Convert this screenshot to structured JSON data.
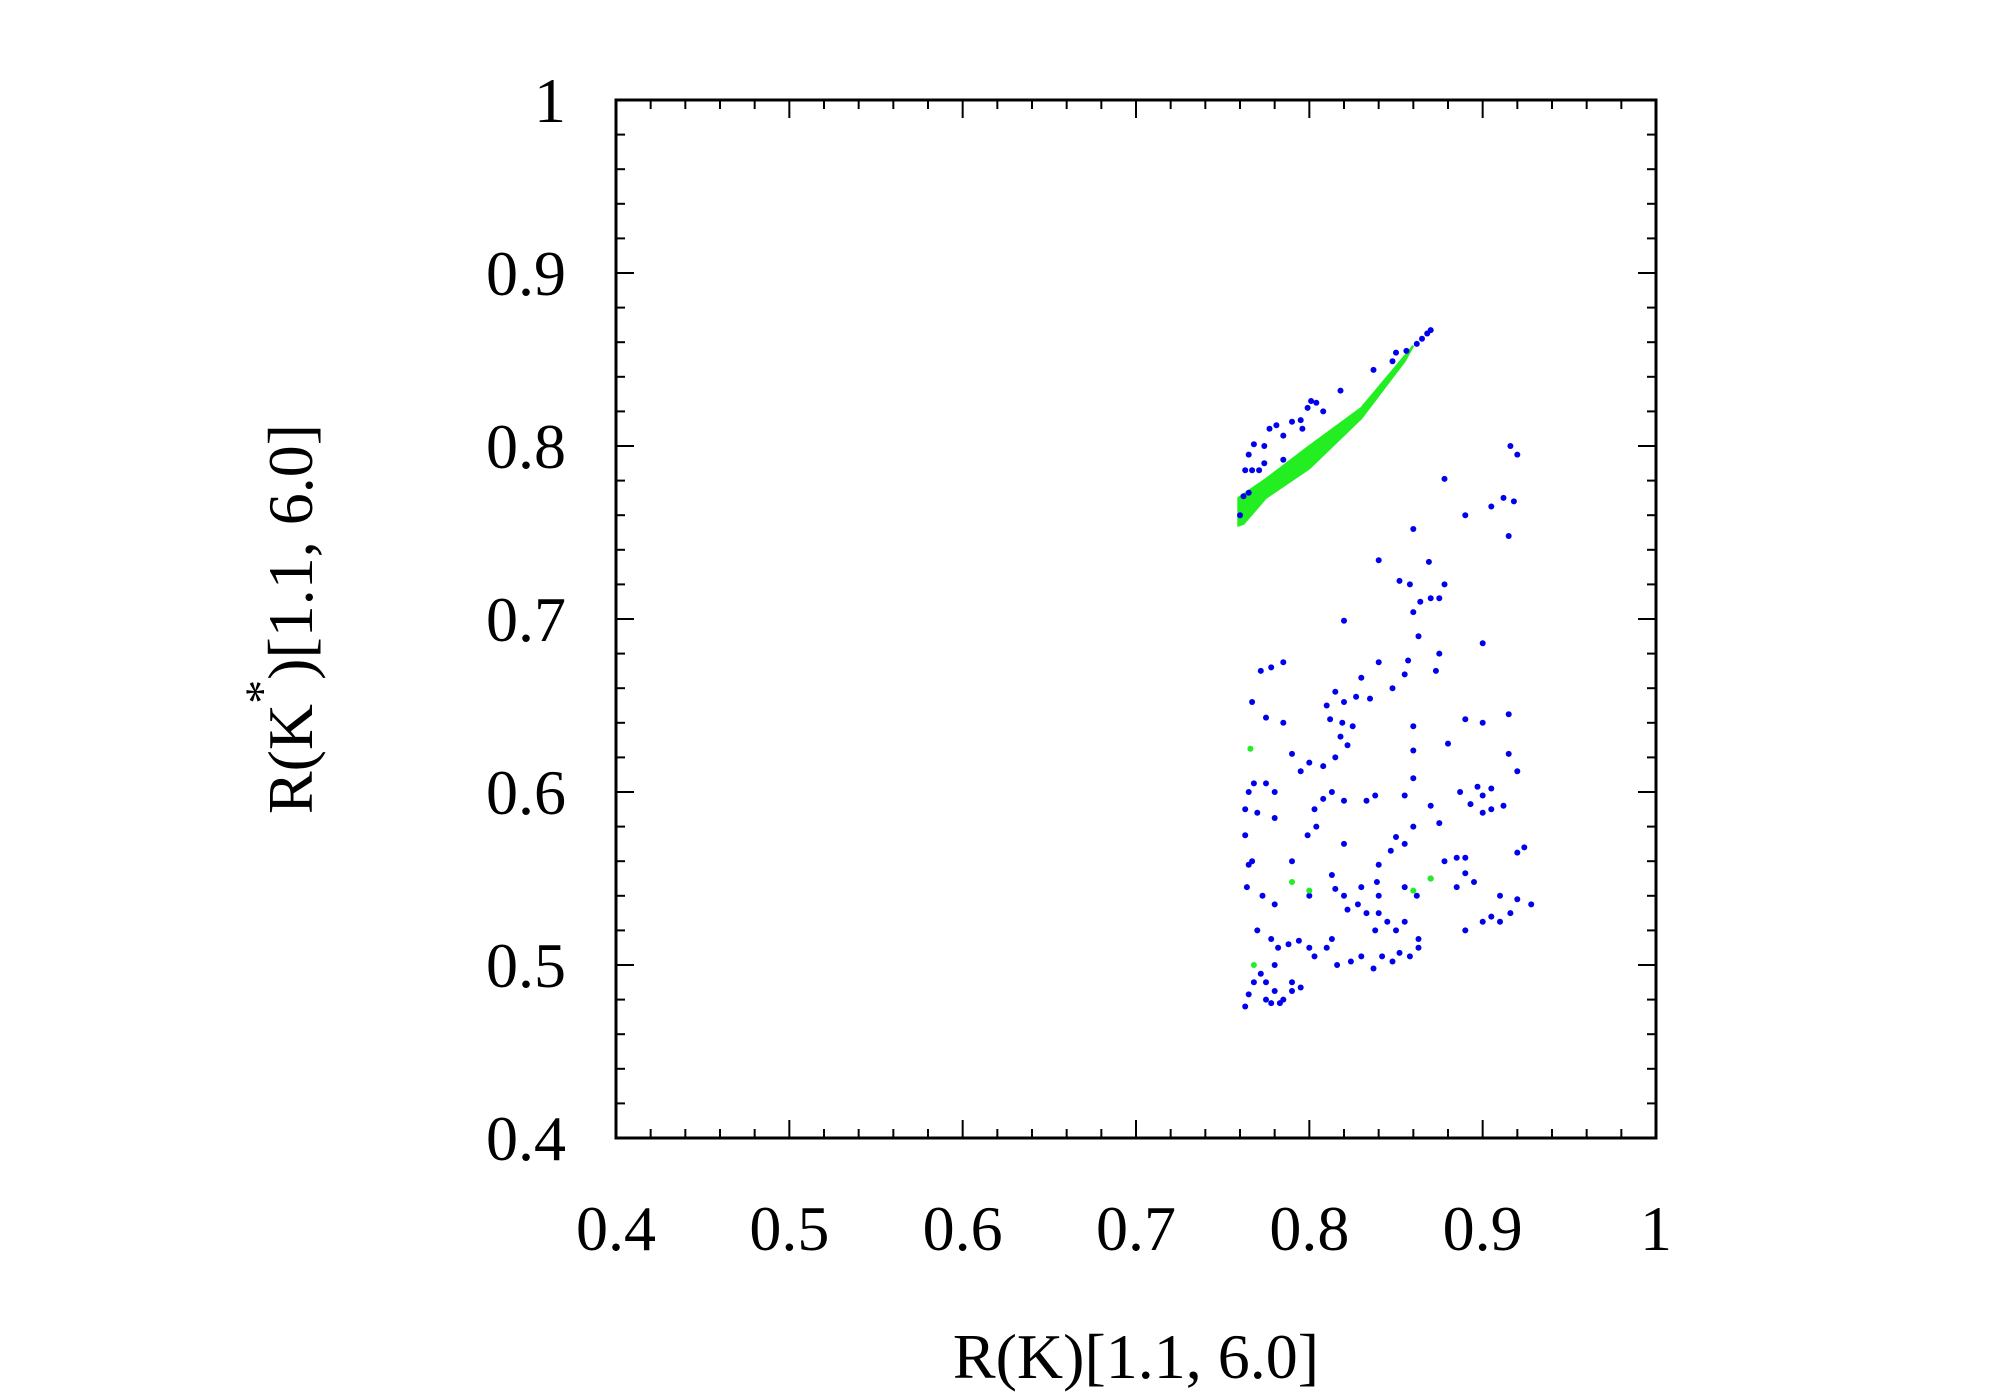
{
  "chart_data": {
    "type": "scatter",
    "xlabel": "R(K)[1.1, 6.0]",
    "ylabel_main": "R(K",
    "ylabel_sup": "*",
    "ylabel_rest": ")[1.1, 6.0]",
    "xlim": [
      0.4,
      1.0
    ],
    "ylim": [
      0.4,
      1.0
    ],
    "xticks": [
      0.4,
      0.5,
      0.6,
      0.7,
      0.8,
      0.9,
      1.0
    ],
    "yticks": [
      0.4,
      0.5,
      0.6,
      0.7,
      0.8,
      0.9,
      1.0
    ],
    "xtick_labels": [
      "0.4",
      "0.5",
      "0.6",
      "0.7",
      "0.8",
      "0.9",
      "1"
    ],
    "ytick_labels": [
      "0.4",
      "0.5",
      "0.6",
      "0.7",
      "0.8",
      "0.9",
      "1"
    ],
    "grid": false,
    "colors": {
      "blue": "#0000ee",
      "green": "#22ee22"
    },
    "green_band": {
      "polygon": [
        [
          0.759,
          0.754
        ],
        [
          0.759,
          0.77
        ],
        [
          0.775,
          0.781
        ],
        [
          0.8,
          0.8
        ],
        [
          0.83,
          0.822
        ],
        [
          0.855,
          0.852
        ],
        [
          0.86,
          0.858
        ],
        [
          0.855,
          0.849
        ],
        [
          0.83,
          0.816
        ],
        [
          0.8,
          0.787
        ],
        [
          0.775,
          0.77
        ],
        [
          0.762,
          0.755
        ]
      ]
    },
    "series": [
      {
        "color": "blue",
        "points": [
          [
            0.76,
            0.76
          ],
          [
            0.762,
            0.771
          ],
          [
            0.765,
            0.773
          ],
          [
            0.763,
            0.786
          ],
          [
            0.767,
            0.786
          ],
          [
            0.765,
            0.795
          ],
          [
            0.768,
            0.801
          ],
          [
            0.771,
            0.786
          ],
          [
            0.774,
            0.79
          ],
          [
            0.774,
            0.8
          ],
          [
            0.777,
            0.81
          ],
          [
            0.781,
            0.812
          ],
          [
            0.785,
            0.806
          ],
          [
            0.785,
            0.792
          ],
          [
            0.79,
            0.814
          ],
          [
            0.795,
            0.815
          ],
          [
            0.799,
            0.822
          ],
          [
            0.801,
            0.826
          ],
          [
            0.804,
            0.825
          ],
          [
            0.796,
            0.81
          ],
          [
            0.808,
            0.82
          ],
          [
            0.818,
            0.832
          ],
          [
            0.837,
            0.844
          ],
          [
            0.848,
            0.849
          ],
          [
            0.85,
            0.854
          ],
          [
            0.856,
            0.855
          ],
          [
            0.862,
            0.859
          ],
          [
            0.865,
            0.862
          ],
          [
            0.868,
            0.865
          ],
          [
            0.87,
            0.867
          ],
          [
            0.916,
            0.8
          ],
          [
            0.92,
            0.795
          ],
          [
            0.878,
            0.781
          ],
          [
            0.912,
            0.77
          ],
          [
            0.918,
            0.768
          ],
          [
            0.905,
            0.765
          ],
          [
            0.89,
            0.76
          ],
          [
            0.86,
            0.752
          ],
          [
            0.915,
            0.748
          ],
          [
            0.84,
            0.734
          ],
          [
            0.869,
            0.733
          ],
          [
            0.852,
            0.722
          ],
          [
            0.858,
            0.72
          ],
          [
            0.878,
            0.72
          ],
          [
            0.86,
            0.704
          ],
          [
            0.864,
            0.71
          ],
          [
            0.87,
            0.712
          ],
          [
            0.875,
            0.712
          ],
          [
            0.82,
            0.699
          ],
          [
            0.863,
            0.69
          ],
          [
            0.9,
            0.686
          ],
          [
            0.875,
            0.68
          ],
          [
            0.857,
            0.676
          ],
          [
            0.84,
            0.675
          ],
          [
            0.772,
            0.67
          ],
          [
            0.778,
            0.672
          ],
          [
            0.785,
            0.675
          ],
          [
            0.873,
            0.67
          ],
          [
            0.855,
            0.668
          ],
          [
            0.83,
            0.666
          ],
          [
            0.848,
            0.66
          ],
          [
            0.827,
            0.655
          ],
          [
            0.835,
            0.654
          ],
          [
            0.767,
            0.652
          ],
          [
            0.815,
            0.658
          ],
          [
            0.785,
            0.64
          ],
          [
            0.81,
            0.65
          ],
          [
            0.82,
            0.652
          ],
          [
            0.775,
            0.643
          ],
          [
            0.812,
            0.642
          ],
          [
            0.819,
            0.64
          ],
          [
            0.825,
            0.638
          ],
          [
            0.86,
            0.638
          ],
          [
            0.89,
            0.642
          ],
          [
            0.915,
            0.645
          ],
          [
            0.9,
            0.64
          ],
          [
            0.818,
            0.632
          ],
          [
            0.822,
            0.627
          ],
          [
            0.815,
            0.62
          ],
          [
            0.79,
            0.622
          ],
          [
            0.808,
            0.615
          ],
          [
            0.88,
            0.628
          ],
          [
            0.915,
            0.622
          ],
          [
            0.86,
            0.624
          ],
          [
            0.92,
            0.612
          ],
          [
            0.795,
            0.612
          ],
          [
            0.8,
            0.617
          ],
          [
            0.765,
            0.6
          ],
          [
            0.768,
            0.605
          ],
          [
            0.775,
            0.605
          ],
          [
            0.78,
            0.6
          ],
          [
            0.763,
            0.59
          ],
          [
            0.86,
            0.608
          ],
          [
            0.887,
            0.6
          ],
          [
            0.897,
            0.603
          ],
          [
            0.9,
            0.598
          ],
          [
            0.905,
            0.602
          ],
          [
            0.808,
            0.596
          ],
          [
            0.813,
            0.6
          ],
          [
            0.838,
            0.598
          ],
          [
            0.855,
            0.598
          ],
          [
            0.893,
            0.593
          ],
          [
            0.9,
            0.588
          ],
          [
            0.905,
            0.59
          ],
          [
            0.912,
            0.592
          ],
          [
            0.77,
            0.588
          ],
          [
            0.78,
            0.585
          ],
          [
            0.803,
            0.59
          ],
          [
            0.82,
            0.595
          ],
          [
            0.833,
            0.595
          ],
          [
            0.87,
            0.592
          ],
          [
            0.799,
            0.575
          ],
          [
            0.763,
            0.575
          ],
          [
            0.765,
            0.558
          ],
          [
            0.767,
            0.56
          ],
          [
            0.804,
            0.58
          ],
          [
            0.86,
            0.58
          ],
          [
            0.875,
            0.582
          ],
          [
            0.85,
            0.574
          ],
          [
            0.847,
            0.566
          ],
          [
            0.84,
            0.558
          ],
          [
            0.82,
            0.57
          ],
          [
            0.855,
            0.57
          ],
          [
            0.885,
            0.562
          ],
          [
            0.89,
            0.562
          ],
          [
            0.92,
            0.565
          ],
          [
            0.924,
            0.568
          ],
          [
            0.79,
            0.56
          ],
          [
            0.813,
            0.552
          ],
          [
            0.815,
            0.544
          ],
          [
            0.82,
            0.54
          ],
          [
            0.83,
            0.545
          ],
          [
            0.839,
            0.548
          ],
          [
            0.84,
            0.54
          ],
          [
            0.84,
            0.53
          ],
          [
            0.87,
            0.55
          ],
          [
            0.878,
            0.56
          ],
          [
            0.89,
            0.553
          ],
          [
            0.895,
            0.548
          ],
          [
            0.885,
            0.545
          ],
          [
            0.764,
            0.545
          ],
          [
            0.773,
            0.54
          ],
          [
            0.78,
            0.535
          ],
          [
            0.8,
            0.54
          ],
          [
            0.855,
            0.545
          ],
          [
            0.862,
            0.54
          ],
          [
            0.91,
            0.54
          ],
          [
            0.916,
            0.53
          ],
          [
            0.92,
            0.538
          ],
          [
            0.928,
            0.535
          ],
          [
            0.91,
            0.525
          ],
          [
            0.822,
            0.532
          ],
          [
            0.828,
            0.535
          ],
          [
            0.833,
            0.53
          ],
          [
            0.838,
            0.52
          ],
          [
            0.845,
            0.525
          ],
          [
            0.85,
            0.52
          ],
          [
            0.855,
            0.525
          ],
          [
            0.863,
            0.515
          ],
          [
            0.89,
            0.52
          ],
          [
            0.9,
            0.525
          ],
          [
            0.905,
            0.528
          ],
          [
            0.77,
            0.52
          ],
          [
            0.778,
            0.515
          ],
          [
            0.782,
            0.51
          ],
          [
            0.788,
            0.512
          ],
          [
            0.794,
            0.514
          ],
          [
            0.8,
            0.51
          ],
          [
            0.803,
            0.505
          ],
          [
            0.81,
            0.51
          ],
          [
            0.813,
            0.515
          ],
          [
            0.816,
            0.5
          ],
          [
            0.824,
            0.502
          ],
          [
            0.83,
            0.505
          ],
          [
            0.837,
            0.498
          ],
          [
            0.842,
            0.505
          ],
          [
            0.848,
            0.502
          ],
          [
            0.852,
            0.507
          ],
          [
            0.858,
            0.505
          ],
          [
            0.863,
            0.51
          ],
          [
            0.768,
            0.49
          ],
          [
            0.772,
            0.495
          ],
          [
            0.775,
            0.49
          ],
          [
            0.78,
            0.5
          ],
          [
            0.765,
            0.483
          ],
          [
            0.775,
            0.48
          ],
          [
            0.78,
            0.485
          ],
          [
            0.785,
            0.48
          ],
          [
            0.79,
            0.485
          ],
          [
            0.795,
            0.487
          ],
          [
            0.79,
            0.49
          ],
          [
            0.763,
            0.476
          ],
          [
            0.778,
            0.478
          ],
          [
            0.783,
            0.478
          ]
        ]
      },
      {
        "color": "green",
        "points": [
          [
            0.766,
            0.625
          ],
          [
            0.79,
            0.548
          ],
          [
            0.8,
            0.543
          ],
          [
            0.86,
            0.543
          ],
          [
            0.87,
            0.55
          ],
          [
            0.768,
            0.5
          ]
        ]
      }
    ]
  }
}
